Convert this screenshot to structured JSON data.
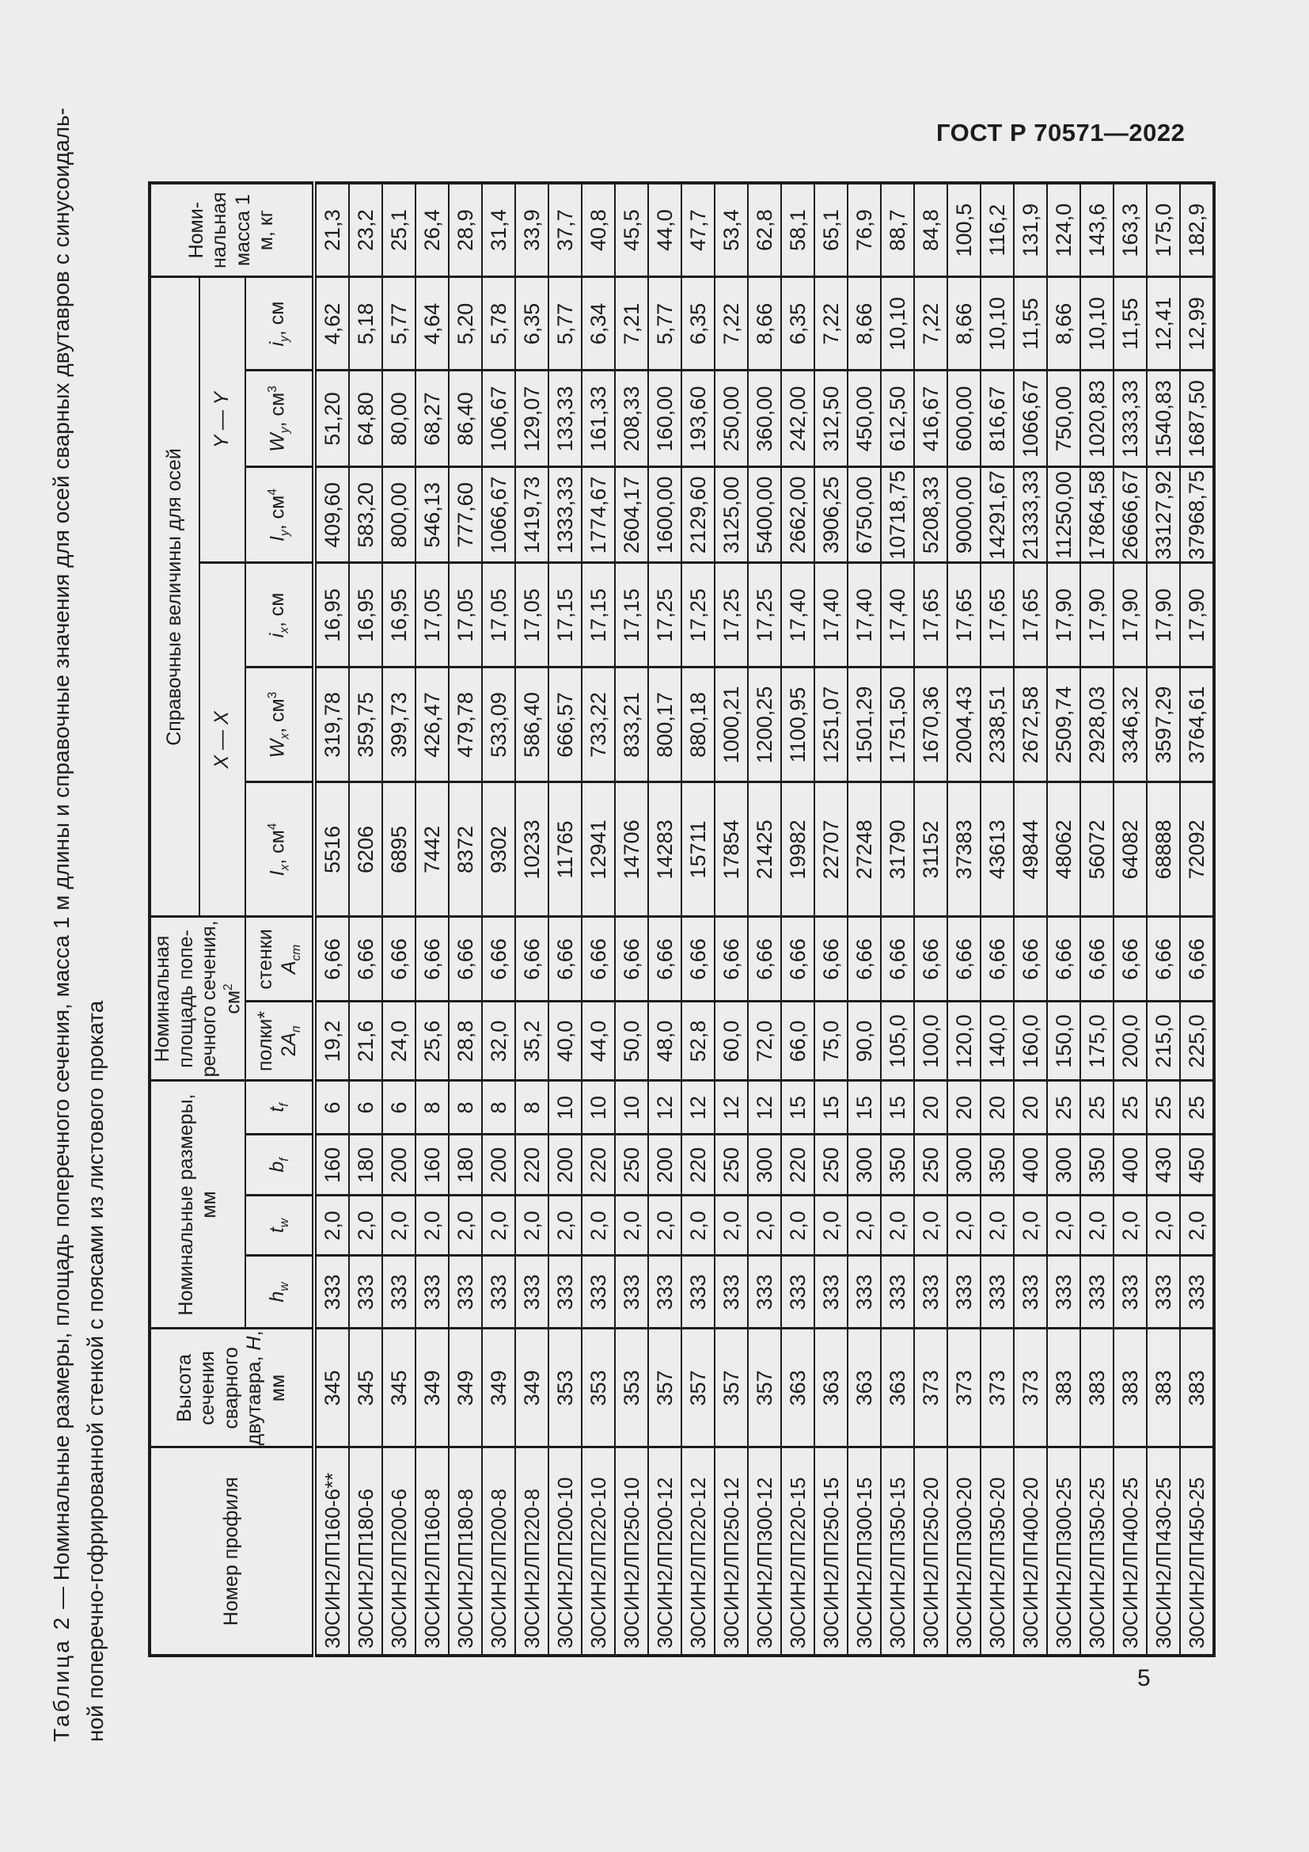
{
  "page": {
    "doc_code": "ГОСТ Р 70571—2022",
    "page_number": "5"
  },
  "title": {
    "lead": "Таблица 2",
    "rest": " — Номинальные размеры, площадь поперечного сечения, масса 1 м длины и справочные значения для осей сварных двутавров с синусоидаль-",
    "line2": "ной поперечно-гофрированной стенкой с поясами из листового проката"
  },
  "table": {
    "header": {
      "profile": "Номер профиля",
      "height": {
        "pre": "Высота сечения сварного двутавра, ",
        "var": "Н",
        "post": ", мм"
      },
      "dims_group": "Номинальные размеры, мм",
      "area_group": {
        "pre": "Номинальная площадь попе-речного сечения, см",
        "sup": "2"
      },
      "ref_group": "Справочные величины для осей",
      "axis_x": "X — X",
      "axis_y": "Y — Y",
      "hw": {
        "var": "h",
        "sub": "w"
      },
      "tw": {
        "var": "t",
        "sub": "w"
      },
      "bf": {
        "var": "b",
        "sub": "f"
      },
      "tf": {
        "var": "t",
        "sub": "f"
      },
      "flange": {
        "line1": "полки*",
        "pre": "2",
        "var": "А",
        "sub": "п"
      },
      "web": {
        "line1": "стенки",
        "var": "А",
        "sub": "ст"
      },
      "Ix": {
        "var": "I",
        "sub": "x",
        "unit": ", см",
        "sup": "4"
      },
      "Wx": {
        "var": "W",
        "sub": "x",
        "unit": ", см",
        "sup": "3"
      },
      "ix": {
        "var": "i",
        "sub": "x",
        "unit": ", см"
      },
      "Iy": {
        "var": "I",
        "sub": "y",
        "unit": ", см",
        "sup": "4"
      },
      "Wy": {
        "var": "W",
        "sub": "y",
        "unit": ", см",
        "sup": "3"
      },
      "iy": {
        "var": "i",
        "sub": "y",
        "unit": ", см"
      },
      "mass": "Номи- нальная масса 1 м, кг"
    },
    "column_keys": [
      "profile",
      "H",
      "hw",
      "tw",
      "bf",
      "tf",
      "A-flange",
      "A-web",
      "Ix",
      "Wx",
      "ix",
      "Iy",
      "Wy",
      "iy",
      "mass"
    ],
    "rows": [
      [
        "30СИН2ЛП160-6**",
        "345",
        "333",
        "2,0",
        "160",
        "6",
        "19,2",
        "6,66",
        "5516",
        "319,78",
        "16,95",
        "409,60",
        "51,20",
        "4,62",
        "21,3"
      ],
      [
        "30СИН2ЛП180-6",
        "345",
        "333",
        "2,0",
        "180",
        "6",
        "21,6",
        "6,66",
        "6206",
        "359,75",
        "16,95",
        "583,20",
        "64,80",
        "5,18",
        "23,2"
      ],
      [
        "30СИН2ЛП200-6",
        "345",
        "333",
        "2,0",
        "200",
        "6",
        "24,0",
        "6,66",
        "6895",
        "399,73",
        "16,95",
        "800,00",
        "80,00",
        "5,77",
        "25,1"
      ],
      [
        "30СИН2ЛП160-8",
        "349",
        "333",
        "2,0",
        "160",
        "8",
        "25,6",
        "6,66",
        "7442",
        "426,47",
        "17,05",
        "546,13",
        "68,27",
        "4,64",
        "26,4"
      ],
      [
        "30СИН2ЛП180-8",
        "349",
        "333",
        "2,0",
        "180",
        "8",
        "28,8",
        "6,66",
        "8372",
        "479,78",
        "17,05",
        "777,60",
        "86,40",
        "5,20",
        "28,9"
      ],
      [
        "30СИН2ЛП200-8",
        "349",
        "333",
        "2,0",
        "200",
        "8",
        "32,0",
        "6,66",
        "9302",
        "533,09",
        "17,05",
        "1066,67",
        "106,67",
        "5,78",
        "31,4"
      ],
      [
        "30СИН2ЛП220-8",
        "349",
        "333",
        "2,0",
        "220",
        "8",
        "35,2",
        "6,66",
        "10233",
        "586,40",
        "17,05",
        "1419,73",
        "129,07",
        "6,35",
        "33,9"
      ],
      [
        "30СИН2ЛП200-10",
        "353",
        "333",
        "2,0",
        "200",
        "10",
        "40,0",
        "6,66",
        "11765",
        "666,57",
        "17,15",
        "1333,33",
        "133,33",
        "5,77",
        "37,7"
      ],
      [
        "30СИН2ЛП220-10",
        "353",
        "333",
        "2,0",
        "220",
        "10",
        "44,0",
        "6,66",
        "12941",
        "733,22",
        "17,15",
        "1774,67",
        "161,33",
        "6,34",
        "40,8"
      ],
      [
        "30СИН2ЛП250-10",
        "353",
        "333",
        "2,0",
        "250",
        "10",
        "50,0",
        "6,66",
        "14706",
        "833,21",
        "17,15",
        "2604,17",
        "208,33",
        "7,21",
        "45,5"
      ],
      [
        "30СИН2ЛП200-12",
        "357",
        "333",
        "2,0",
        "200",
        "12",
        "48,0",
        "6,66",
        "14283",
        "800,17",
        "17,25",
        "1600,00",
        "160,00",
        "5,77",
        "44,0"
      ],
      [
        "30СИН2ЛП220-12",
        "357",
        "333",
        "2,0",
        "220",
        "12",
        "52,8",
        "6,66",
        "15711",
        "880,18",
        "17,25",
        "2129,60",
        "193,60",
        "6,35",
        "47,7"
      ],
      [
        "30СИН2ЛП250-12",
        "357",
        "333",
        "2,0",
        "250",
        "12",
        "60,0",
        "6,66",
        "17854",
        "1000,21",
        "17,25",
        "3125,00",
        "250,00",
        "7,22",
        "53,4"
      ],
      [
        "30СИН2ЛП300-12",
        "357",
        "333",
        "2,0",
        "300",
        "12",
        "72,0",
        "6,66",
        "21425",
        "1200,25",
        "17,25",
        "5400,00",
        "360,00",
        "8,66",
        "62,8"
      ],
      [
        "30СИН2ЛП220-15",
        "363",
        "333",
        "2,0",
        "220",
        "15",
        "66,0",
        "6,66",
        "19982",
        "1100,95",
        "17,40",
        "2662,00",
        "242,00",
        "6,35",
        "58,1"
      ],
      [
        "30СИН2ЛП250-15",
        "363",
        "333",
        "2,0",
        "250",
        "15",
        "75,0",
        "6,66",
        "22707",
        "1251,07",
        "17,40",
        "3906,25",
        "312,50",
        "7,22",
        "65,1"
      ],
      [
        "30СИН2ЛП300-15",
        "363",
        "333",
        "2,0",
        "300",
        "15",
        "90,0",
        "6,66",
        "27248",
        "1501,29",
        "17,40",
        "6750,00",
        "450,00",
        "8,66",
        "76,9"
      ],
      [
        "30СИН2ЛП350-15",
        "363",
        "333",
        "2,0",
        "350",
        "15",
        "105,0",
        "6,66",
        "31790",
        "1751,50",
        "17,40",
        "10718,75",
        "612,50",
        "10,10",
        "88,7"
      ],
      [
        "30СИН2ЛП250-20",
        "373",
        "333",
        "2,0",
        "250",
        "20",
        "100,0",
        "6,66",
        "31152",
        "1670,36",
        "17,65",
        "5208,33",
        "416,67",
        "7,22",
        "84,8"
      ],
      [
        "30СИН2ЛП300-20",
        "373",
        "333",
        "2,0",
        "300",
        "20",
        "120,0",
        "6,66",
        "37383",
        "2004,43",
        "17,65",
        "9000,00",
        "600,00",
        "8,66",
        "100,5"
      ],
      [
        "30СИН2ЛП350-20",
        "373",
        "333",
        "2,0",
        "350",
        "20",
        "140,0",
        "6,66",
        "43613",
        "2338,51",
        "17,65",
        "14291,67",
        "816,67",
        "10,10",
        "116,2"
      ],
      [
        "30СИН2ЛП400-20",
        "373",
        "333",
        "2,0",
        "400",
        "20",
        "160,0",
        "6,66",
        "49844",
        "2672,58",
        "17,65",
        "21333,33",
        "1066,67",
        "11,55",
        "131,9"
      ],
      [
        "30СИН2ЛП300-25",
        "383",
        "333",
        "2,0",
        "300",
        "25",
        "150,0",
        "6,66",
        "48062",
        "2509,74",
        "17,90",
        "11250,00",
        "750,00",
        "8,66",
        "124,0"
      ],
      [
        "30СИН2ЛП350-25",
        "383",
        "333",
        "2,0",
        "350",
        "25",
        "175,0",
        "6,66",
        "56072",
        "2928,03",
        "17,90",
        "17864,58",
        "1020,83",
        "10,10",
        "143,6"
      ],
      [
        "30СИН2ЛП400-25",
        "383",
        "333",
        "2,0",
        "400",
        "25",
        "200,0",
        "6,66",
        "64082",
        "3346,32",
        "17,90",
        "26666,67",
        "1333,33",
        "11,55",
        "163,3"
      ],
      [
        "30СИН2ЛП430-25",
        "383",
        "333",
        "2,0",
        "430",
        "25",
        "215,0",
        "6,66",
        "68888",
        "3597,29",
        "17,90",
        "33127,92",
        "1540,83",
        "12,41",
        "175,0"
      ],
      [
        "30СИН2ЛП450-25",
        "383",
        "333",
        "2,0",
        "450",
        "25",
        "225,0",
        "6,66",
        "72092",
        "3764,61",
        "17,90",
        "37968,75",
        "1687,50",
        "12,99",
        "182,9"
      ]
    ]
  }
}
